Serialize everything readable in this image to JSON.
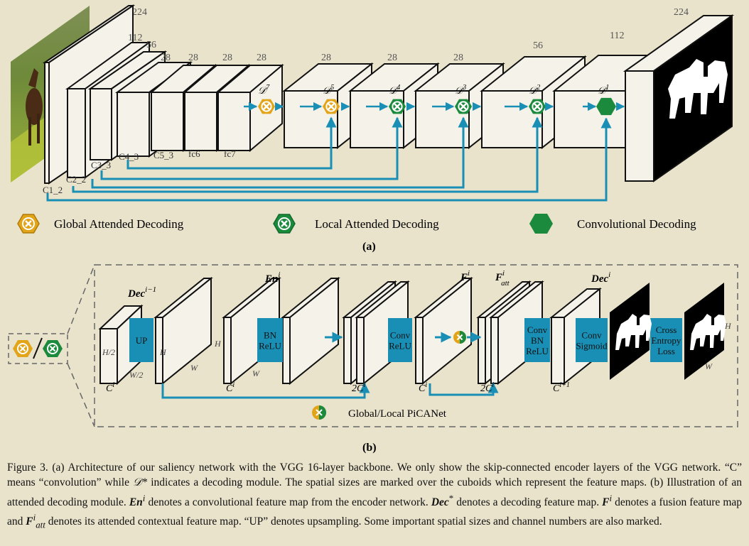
{
  "colors": {
    "background": "#e9e3cc",
    "teal": "#1a8fb5",
    "gold": "#e2a418",
    "green": "#1b8a3c",
    "block_fill": "#f4f2e9"
  },
  "panel_a": {
    "input_size": "224",
    "output_size": "224",
    "layer_sizes": [
      "112",
      "56",
      "28",
      "28",
      "28",
      "28"
    ],
    "layer_labels": [
      "C1_2",
      "C2_2",
      "C3_3",
      "C4_3",
      "C5_3",
      "fc6",
      "fc7"
    ],
    "decoder_sizes": [
      "28",
      "28",
      "28",
      "56",
      "112"
    ],
    "decoder_modules": [
      {
        "sym": "𝒟",
        "sup": "7",
        "icon": "global-attended-decoding-icon"
      },
      {
        "sym": "𝒟",
        "sup": "5",
        "icon": "global-attended-decoding-icon"
      },
      {
        "sym": "𝒟",
        "sup": "4",
        "icon": "local-attended-decoding-icon"
      },
      {
        "sym": "𝒟",
        "sup": "3",
        "icon": "local-attended-decoding-icon"
      },
      {
        "sym": "𝒟",
        "sup": "2",
        "icon": "local-attended-decoding-icon"
      },
      {
        "sym": "𝒟",
        "sup": "1",
        "icon": "convolutional-decoding-icon"
      }
    ],
    "legend": {
      "global": "Global Attended Decoding",
      "local": "Local Attended Decoding",
      "conv": "Convolutional Decoding"
    },
    "label": "(a)"
  },
  "panel_b": {
    "dec_prev": {
      "name": "Dec",
      "sup": "i−1"
    },
    "en": {
      "name": "En",
      "sup": "i"
    },
    "f": {
      "name": "F",
      "sup": "i"
    },
    "f_att": {
      "name": "F",
      "sup": "i",
      "sub": "att"
    },
    "dec": {
      "name": "Dec",
      "sup": "i"
    },
    "up": "UP",
    "bn_relu": [
      "BN",
      "ReLU"
    ],
    "conv_relu": [
      "Conv",
      "ReLU"
    ],
    "conv_bn_relu": [
      "Conv",
      "BN",
      "ReLU"
    ],
    "conv_sigmoid": [
      "Conv",
      "Sigmoid"
    ],
    "loss": [
      "Cross",
      "Entropy",
      "Loss"
    ],
    "dims": {
      "h2": "H/2",
      "w2": "W/2",
      "h": "H",
      "w": "W"
    },
    "channels": {
      "ci": "C",
      "ci_sup": "i",
      "two_ci": "2C",
      "ci1_sup": "i+1"
    },
    "picanet": "Global/Local PiCANet",
    "label": "(b)"
  },
  "caption": {
    "p1": "Figure 3. (a) Architecture of our saliency network with the VGG 16-layer backbone. We only show the skip-connected encoder layers of the VGG network. “C” means “convolution” while ",
    "d_star": "𝒟*",
    "p2": " indicates a decoding module. The spatial sizes are marked over the cuboids which represent the feature maps. (b) Illustration of an attended decoding module. ",
    "en": "En",
    "en_sup": "i",
    "p3": " denotes a convolutional feature map from the encoder network. ",
    "dec": "Dec",
    "dec_sup": "*",
    "p4": " denotes a decoding feature map. ",
    "f": "F",
    "f_sup": "i",
    "p5": " denotes a fusion feature map and ",
    "fatt": "F",
    "fatt_sup": "i",
    "fatt_sub": "att",
    "p6": " denotes its attended contextual feature map. “UP” denotes upsampling. Some important spatial sizes and channel numbers are also marked."
  }
}
